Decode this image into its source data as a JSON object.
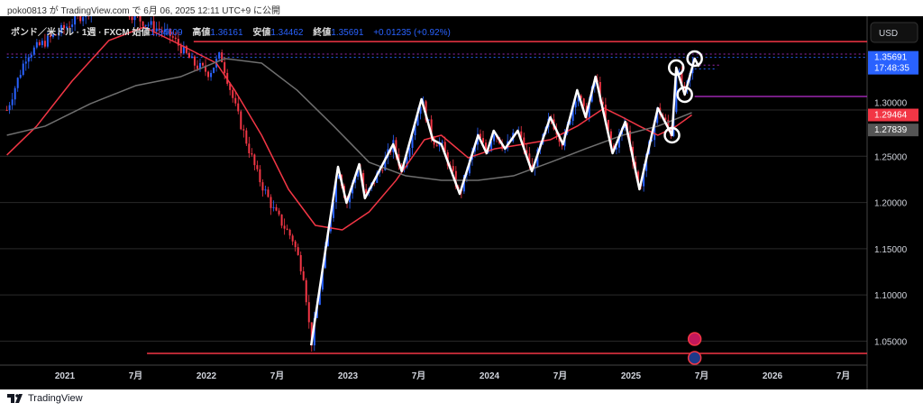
{
  "published": "poko0813 が TradingView.com で 6月 06, 2025 12:11 UTC+9 に公開",
  "legend": {
    "symbol": "ポンド／米ドル · 1週 · FXCM",
    "open_label": "始値",
    "open": "1.34609",
    "high_label": "高値",
    "high": "1.36161",
    "low_label": "安値",
    "low": "1.34462",
    "close_label": "終値",
    "close": "1.35691",
    "change": "+0.01235 (+0.92%)"
  },
  "currency_button": "USD",
  "price_markers": {
    "last_price": "1.35691",
    "countdown": "17:48:35",
    "red_ma": "1.29464",
    "grey_ma": "1.27839"
  },
  "brand": "TradingView",
  "colors": {
    "up": "#2962ff",
    "down": "#f23645",
    "ma_fast": "#f23645",
    "ma_slow": "#6f6f6f",
    "zigzag": "#ffffff",
    "hline": "#f23645",
    "purple": "#9c27b0"
  },
  "chart_data": {
    "type": "line",
    "title": "GBP/USD weekly",
    "ylim": [
      1.0,
      1.43
    ],
    "xlim": [
      2020.59,
      2026.6
    ],
    "y_ticks": [
      "1.05000",
      "1.10000",
      "1.15000",
      "1.20000",
      "1.25000",
      "1.30000"
    ],
    "y_tick_values": [
      1.05,
      1.1,
      1.15,
      1.2,
      1.25,
      1.3
    ],
    "x_ticks": [
      {
        "t": 2021.0,
        "label": "2021"
      },
      {
        "t": 2021.5,
        "label": "7月"
      },
      {
        "t": 2022.0,
        "label": "2022"
      },
      {
        "t": 2022.5,
        "label": "7月"
      },
      {
        "t": 2023.0,
        "label": "2023"
      },
      {
        "t": 2023.5,
        "label": "7月"
      },
      {
        "t": 2024.0,
        "label": "2024"
      },
      {
        "t": 2024.5,
        "label": "7月"
      },
      {
        "t": 2025.0,
        "label": "2025"
      },
      {
        "t": 2025.5,
        "label": "7月"
      },
      {
        "t": 2026.0,
        "label": "2026"
      },
      {
        "t": 2026.5,
        "label": "7月"
      }
    ],
    "price_path": [
      [
        2020.59,
        1.3
      ],
      [
        2020.73,
        1.36
      ],
      [
        2020.92,
        1.38
      ],
      [
        2021.18,
        1.41
      ],
      [
        2021.34,
        1.42
      ],
      [
        2021.5,
        1.4
      ],
      [
        2021.75,
        1.38
      ],
      [
        2021.91,
        1.35
      ],
      [
        2022.02,
        1.34
      ],
      [
        2022.1,
        1.36
      ],
      [
        2022.21,
        1.3
      ],
      [
        2022.36,
        1.23
      ],
      [
        2022.48,
        1.19
      ],
      [
        2022.61,
        1.16
      ],
      [
        2022.69,
        1.12
      ],
      [
        2022.74,
        1.0455
      ],
      [
        2022.93,
        1.2386
      ],
      [
        2022.99,
        1.1996
      ],
      [
        2023.08,
        1.2415
      ],
      [
        2023.12,
        1.2045
      ],
      [
        2023.32,
        1.263
      ],
      [
        2023.38,
        1.2337
      ],
      [
        2023.52,
        1.3117
      ],
      [
        2023.6,
        1.2678
      ],
      [
        2023.66,
        1.263
      ],
      [
        2023.79,
        1.2093
      ],
      [
        2023.92,
        1.2727
      ],
      [
        2023.98,
        1.2532
      ],
      [
        2024.03,
        1.2776
      ],
      [
        2024.11,
        1.2581
      ],
      [
        2024.2,
        1.2776
      ],
      [
        2024.3,
        1.2337
      ],
      [
        2024.43,
        1.2922
      ],
      [
        2024.52,
        1.263
      ],
      [
        2024.62,
        1.3215
      ],
      [
        2024.68,
        1.2922
      ],
      [
        2024.75,
        1.3361
      ],
      [
        2024.87,
        1.2532
      ],
      [
        2024.96,
        1.2873
      ],
      [
        2025.06,
        1.2142
      ],
      [
        2025.19,
        1.302
      ],
      [
        2025.29,
        1.2727
      ],
      [
        2025.32,
        1.3458
      ],
      [
        2025.38,
        1.3166
      ],
      [
        2025.45,
        1.3569
      ]
    ],
    "series": [
      {
        "name": "Fast MA",
        "points": [
          [
            2020.59,
            1.2513
          ],
          [
            2020.8,
            1.2825
          ],
          [
            2021.05,
            1.3312
          ],
          [
            2021.31,
            1.3751
          ],
          [
            2021.56,
            1.3897
          ],
          [
            2021.82,
            1.3702
          ],
          [
            2022.07,
            1.3507
          ],
          [
            2022.2,
            1.3215
          ],
          [
            2022.39,
            1.2727
          ],
          [
            2022.58,
            1.2142
          ],
          [
            2022.77,
            1.1752
          ],
          [
            2022.96,
            1.1703
          ],
          [
            2023.15,
            1.1898
          ],
          [
            2023.34,
            1.2239
          ],
          [
            2023.54,
            1.2678
          ],
          [
            2023.66,
            1.2727
          ],
          [
            2023.85,
            1.2483
          ],
          [
            2024.04,
            1.2581
          ],
          [
            2024.24,
            1.263
          ],
          [
            2024.43,
            1.2678
          ],
          [
            2024.62,
            1.2825
          ],
          [
            2024.81,
            1.302
          ],
          [
            2024.94,
            1.2922
          ],
          [
            2025.06,
            1.2825
          ],
          [
            2025.19,
            1.2727
          ],
          [
            2025.32,
            1.2825
          ],
          [
            2025.43,
            1.2946
          ]
        ]
      },
      {
        "name": "Slow MA",
        "points": [
          [
            2020.59,
            1.2727
          ],
          [
            2020.86,
            1.2825
          ],
          [
            2021.18,
            1.3068
          ],
          [
            2021.5,
            1.3263
          ],
          [
            2021.82,
            1.3361
          ],
          [
            2022.13,
            1.3556
          ],
          [
            2022.39,
            1.3507
          ],
          [
            2022.64,
            1.3215
          ],
          [
            2022.9,
            1.2825
          ],
          [
            2023.15,
            1.2434
          ],
          [
            2023.41,
            1.2288
          ],
          [
            2023.66,
            1.2239
          ],
          [
            2023.92,
            1.2239
          ],
          [
            2024.17,
            1.2288
          ],
          [
            2024.43,
            1.2434
          ],
          [
            2024.68,
            1.2581
          ],
          [
            2024.94,
            1.2727
          ],
          [
            2025.19,
            1.2825
          ],
          [
            2025.43,
            1.2971
          ]
        ]
      },
      {
        "name": "ZigZag",
        "points": [
          [
            2022.74,
            1.0455
          ],
          [
            2022.93,
            1.2386
          ],
          [
            2022.99,
            1.1996
          ],
          [
            2023.08,
            1.2415
          ],
          [
            2023.12,
            1.2045
          ],
          [
            2023.32,
            1.263
          ],
          [
            2023.38,
            1.2337
          ],
          [
            2023.52,
            1.3117
          ],
          [
            2023.6,
            1.2678
          ],
          [
            2023.66,
            1.263
          ],
          [
            2023.79,
            1.2093
          ],
          [
            2023.92,
            1.2727
          ],
          [
            2023.98,
            1.2532
          ],
          [
            2024.03,
            1.2776
          ],
          [
            2024.11,
            1.2581
          ],
          [
            2024.2,
            1.2776
          ],
          [
            2024.3,
            1.2337
          ],
          [
            2024.43,
            1.2922
          ],
          [
            2024.52,
            1.263
          ],
          [
            2024.62,
            1.3215
          ],
          [
            2024.68,
            1.2922
          ],
          [
            2024.75,
            1.3361
          ],
          [
            2024.87,
            1.2532
          ],
          [
            2024.96,
            1.2873
          ],
          [
            2025.06,
            1.2142
          ],
          [
            2025.19,
            1.302
          ],
          [
            2025.29,
            1.2727
          ],
          [
            2025.32,
            1.3458
          ],
          [
            2025.38,
            1.3166
          ],
          [
            2025.45,
            1.3556
          ],
          [
            2025.48,
            1.347
          ]
        ]
      }
    ],
    "circled_points": [
      [
        2025.29,
        1.2727
      ],
      [
        2025.32,
        1.3458
      ],
      [
        2025.38,
        1.3166
      ],
      [
        2025.45,
        1.3556
      ]
    ],
    "horizontal_lines": [
      {
        "price": 1.0368,
        "from": 2021.58,
        "color": "red"
      },
      {
        "price": 1.374,
        "from": 2021.91,
        "color": "red"
      },
      {
        "price": 1.3146,
        "from": 2025.45,
        "color": "purple"
      },
      {
        "price": 1.3569,
        "from": 2020.59,
        "color": "blue-dotted"
      },
      {
        "price": 1.3605,
        "from": 2020.59,
        "color": "purple-dotted"
      },
      {
        "price": 1.3485,
        "from": 2025.45,
        "to": 2025.63,
        "color": "purple-dotted"
      },
      {
        "price": 1.3445,
        "from": 2025.45,
        "to": 2025.61,
        "color": "blue-dotted"
      }
    ],
    "events": [
      {
        "t": 2025.45,
        "flag": "GB"
      },
      {
        "t": 2025.45,
        "flag": "US"
      }
    ]
  }
}
